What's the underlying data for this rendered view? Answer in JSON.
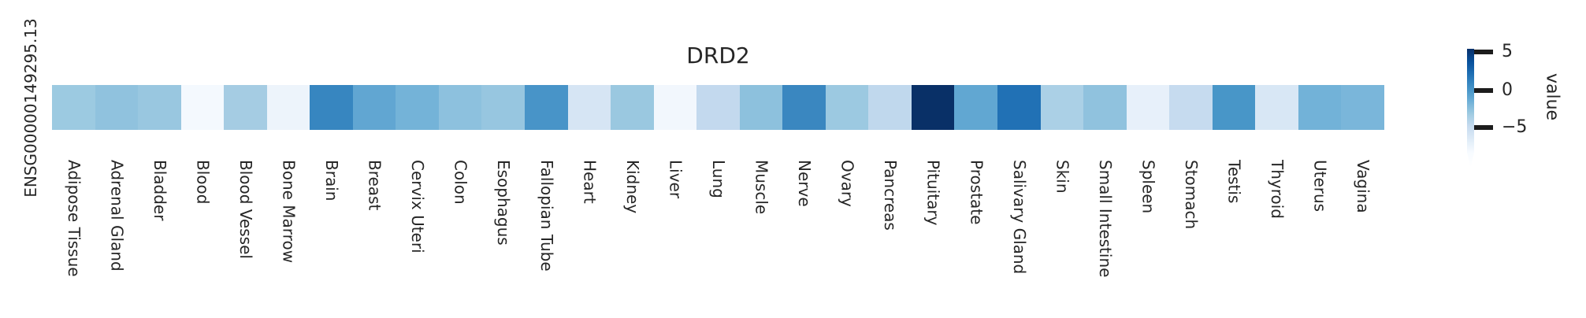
{
  "figure": {
    "title": "DRD2",
    "y_axis_label": "ENSG00000149295.13",
    "background_color": "#ffffff",
    "text_color": "#262626"
  },
  "colorbar": {
    "label": "value",
    "ticks": [
      "5",
      "0",
      "−5"
    ]
  },
  "chart_data": {
    "type": "heatmap",
    "title": "DRD2",
    "rows": [
      "ENSG00000149295.13"
    ],
    "categories": [
      "Adipose Tissue",
      "Adrenal Gland",
      "Bladder",
      "Blood",
      "Blood Vessel",
      "Bone Marrow",
      "Brain",
      "Breast",
      "Cervix Uteri",
      "Colon",
      "Esophagus",
      "Fallopian Tube",
      "Heart",
      "Kidney",
      "Liver",
      "Lung",
      "Muscle",
      "Nerve",
      "Ovary",
      "Pancreas",
      "Pituitary",
      "Prostate",
      "Salivary Gland",
      "Skin",
      "Small Intestine",
      "Spleen",
      "Stomach",
      "Testis",
      "Thyroid",
      "Uterus",
      "Vagina"
    ],
    "series": [
      {
        "name": "ENSG00000149295.13",
        "values_estimated": [
          -3.1,
          -2.5,
          -2.9,
          -8.1,
          -3.5,
          -7.5,
          0.6,
          -0.8,
          -1.6,
          -2.3,
          -2.7,
          0.0,
          -6.3,
          -2.9,
          -7.9,
          -4.8,
          -2.3,
          0.6,
          -3.0,
          -4.7,
          5.4,
          -0.8,
          2.0,
          -3.7,
          -2.5,
          -7.1,
          -5.0,
          -0.1,
          -6.3,
          -1.5,
          -1.8
        ],
        "cell_colors_hex": [
          "#9ccae1",
          "#90c2de",
          "#99c7e0",
          "#f4f9fe",
          "#a5cce3",
          "#edf4fb",
          "#3786c0",
          "#61a6d2",
          "#74b3d8",
          "#8dc1de",
          "#97c6e0",
          "#4894c8",
          "#d6e5f4",
          "#9ac8e0",
          "#f2f7fd",
          "#c3d9ee",
          "#8dc1dd",
          "#3a87c0",
          "#9cc9e1",
          "#c0d8ed",
          "#093067",
          "#61a7d2",
          "#2171b5",
          "#abd0e6",
          "#90c2de",
          "#e7f0fa",
          "#c6dbef",
          "#4896c8",
          "#d8e7f5",
          "#72b2d8",
          "#7ab6da"
        ]
      }
    ],
    "colorbar": {
      "label": "value",
      "tick_values": [
        5,
        0,
        -5
      ],
      "colormap": "Blues",
      "range_estimated": [
        -8.4,
        5.4
      ],
      "extend": "min"
    },
    "grid": false,
    "legend_position": "colorbar-right",
    "x_tick_rotation": 90,
    "note": "values_estimated are read off the Blues colorbar; no numeric labels are printed in the figure"
  }
}
